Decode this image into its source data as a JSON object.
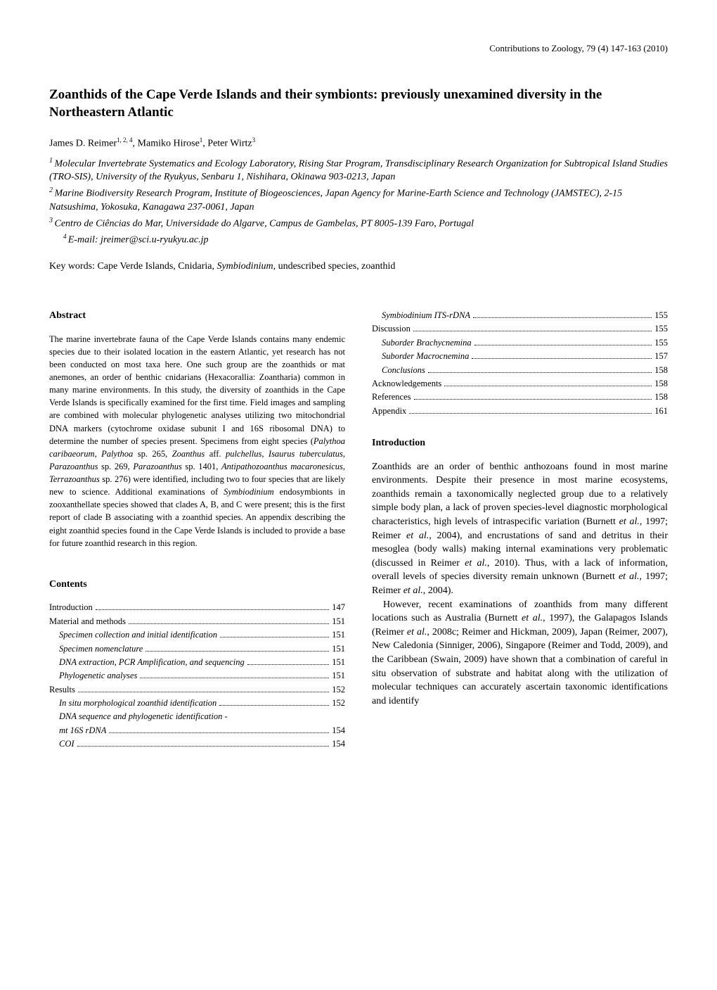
{
  "journal_header": "Contributions to Zoology, 79 (4) 147-163 (2010)",
  "title": "Zoanthids of the Cape Verde Islands and their symbionts: previously unexamined diversity in the Northeastern Atlantic",
  "authors_line": "James D. Reimer",
  "authors_sup1": "1, 2, 4",
  "authors_mid": ", Mamiko Hirose",
  "authors_sup2": "1",
  "authors_end": ", Peter Wirtz",
  "authors_sup3": "3",
  "affil1_sup": "1 ",
  "affil1": "Molecular Invertebrate Systematics and Ecology Laboratory, Rising Star Program, Transdisciplinary Research Organization for Subtropical Island Studies (TRO-SIS), University of the Ryukyus, Senbaru 1, Nishihara, Okinawa 903-0213, Japan",
  "affil2_sup": "2 ",
  "affil2": "Marine Biodiversity Research Program, Institute of Biogeosciences, Japan Agency for Marine-Earth Science and Technology (JAMSTEC), 2-15 Natsushima, Yokosuka, Kanagawa 237-0061, Japan",
  "affil3_sup": "3 ",
  "affil3": "Centro de Ciências do Mar, Universidade do Algarve, Campus de Gambelas, PT 8005-139 Faro, Portugal",
  "email_sup": "4 ",
  "email": "E-mail: jreimer@sci.u-ryukyu.ac.jp",
  "keywords_label": "Key words: ",
  "keywords_pre": "Cape Verde Islands, Cnidaria, ",
  "keywords_italic": "Symbiodinium",
  "keywords_post": ", undescribed species, zoanthid",
  "abstract_heading": "Abstract",
  "abstract_body_pre": "The marine invertebrate fauna of the Cape Verde Islands contains many endemic species due to their isolated location in the eastern Atlantic, yet research has not been conducted on most taxa here. One such group are the zoanthids or mat anemones, an order of benthic cnidarians (Hexacorallia: Zoantharia) common in many marine environments. In this study, the diversity of zoanthids in the Cape Verde Islands is specifically examined for the first time. Field images and sampling are combined with molecular phylogenetic analyses utilizing two mitochondrial DNA markers (cytochrome oxidase subunit I and 16S ribosomal DNA) to determine the number of species present. Specimens from eight species (",
  "abstract_sp1": "Palythoa caribaeorum",
  "abstract_m1": ", ",
  "abstract_sp2": "Palythoa",
  "abstract_m2": " sp. 265, ",
  "abstract_sp3": "Zoanthus",
  "abstract_m3": " aff. ",
  "abstract_sp4": "pulchellus",
  "abstract_m4": ", ",
  "abstract_sp5": "Isaurus tuberculatus",
  "abstract_m5": ", ",
  "abstract_sp6": "Parazoanthus",
  "abstract_m6": " sp. 269, ",
  "abstract_sp7": "Parazoanthus",
  "abstract_m7": " sp. 1401, ",
  "abstract_sp8": "Antipathozoanthus macaronesicus",
  "abstract_m8": ", ",
  "abstract_sp9": "Terrazoanthus",
  "abstract_m9": " sp. 276) were identified, including two to four species that are likely new to science. Additional examinations of ",
  "abstract_sp10": "Symbiodinium",
  "abstract_body_post": " endosymbionts in zooxanthellate species showed that clades A, B, and C were present; this is the first report of clade B associating with a zoanthid species. An appendix describing the eight zoanthid species found in the Cape Verde Islands is included to provide a base for future zoanthid research in this region.",
  "contents_heading": "Contents",
  "toc_left": [
    {
      "label": "Introduction",
      "page": "147",
      "indent": 0,
      "italic": false
    },
    {
      "label": "Material and methods",
      "page": "151",
      "indent": 0,
      "italic": false
    },
    {
      "label": "Specimen collection and initial identification",
      "page": "151",
      "indent": 1,
      "italic": true
    },
    {
      "label": "Specimen nomenclature",
      "page": "151",
      "indent": 1,
      "italic": true
    },
    {
      "label": "DNA extraction, PCR Amplification, and sequencing",
      "page": "151",
      "indent": 1,
      "italic": true
    },
    {
      "label": "Phylogenetic analyses",
      "page": "151",
      "indent": 1,
      "italic": true
    },
    {
      "label": "Results",
      "page": "152",
      "indent": 0,
      "italic": false
    },
    {
      "label": "In situ morphological zoanthid identification",
      "page": "152",
      "indent": 1,
      "italic": true
    },
    {
      "label": "DNA sequence and phylogenetic identification -",
      "page": "",
      "indent": 1,
      "italic": true
    },
    {
      "label": "mt 16S rDNA",
      "page": "154",
      "indent": 1,
      "italic": true
    },
    {
      "label": "COI",
      "page": "154",
      "indent": 1,
      "italic": true
    }
  ],
  "toc_right": [
    {
      "label": "Symbiodinium ITS-rDNA",
      "page": "155",
      "indent": 1,
      "italic": true,
      "mixed": true,
      "pre": "Symbiodinium ",
      "ital_part": "ITS-rDNA"
    },
    {
      "label": "Discussion",
      "page": "155",
      "indent": 0,
      "italic": false
    },
    {
      "label": "Suborder Brachycnemina",
      "page": "155",
      "indent": 1,
      "italic": true
    },
    {
      "label": "Suborder Macrocnemina",
      "page": "157",
      "indent": 1,
      "italic": true
    },
    {
      "label": "Conclusions",
      "page": "158",
      "indent": 1,
      "italic": true
    },
    {
      "label": "Acknowledgements",
      "page": "158",
      "indent": 0,
      "italic": false
    },
    {
      "label": "References",
      "page": "158",
      "indent": 0,
      "italic": false
    },
    {
      "label": "Appendix",
      "page": "161",
      "indent": 0,
      "italic": false
    }
  ],
  "intro_heading": "Introduction",
  "intro_p1_pre": "Zoanthids are an order of benthic anthozoans found in most marine environments. Despite their presence in most marine ecosystems, zoanthids remain a taxonomically neglected group due to a relatively simple body plan, a lack of proven species-level diagnostic morphological characteristics, high levels of intraspecific variation (Burnett ",
  "intro_p1_it1": "et al.",
  "intro_p1_m1": ", 1997; Reimer ",
  "intro_p1_it2": "et al.",
  "intro_p1_m2": ", 2004), and encrustations of sand and detritus in their mesoglea (body walls) making internal examinations very problematic (discussed in Reimer ",
  "intro_p1_it3": "et al.",
  "intro_p1_m3": ", 2010). Thus, with a lack of information, overall levels of species diversity remain unknown (Burnett ",
  "intro_p1_it4": "et al.",
  "intro_p1_m4": ", 1997; Reimer ",
  "intro_p1_it5": "et al.",
  "intro_p1_post": ", 2004).",
  "intro_p2_pre": "However, recent examinations of zoanthids from many different locations such as Australia (Burnett ",
  "intro_p2_it1": "et al.",
  "intro_p2_m1": ", 1997), the Galapagos Islands (Reimer ",
  "intro_p2_it2": "et al.",
  "intro_p2_m2": ", 2008c; Reimer and Hickman, 2009), Japan (Reimer, 2007), New Caledonia (Sinniger, 2006), Singapore (Reimer and Todd, 2009), and the Caribbean (Swain, 2009) have shown that a combination of careful in situ observation of substrate and habitat along with the utilization of molecular techniques can accurately ascertain taxonomic identifications and identify"
}
